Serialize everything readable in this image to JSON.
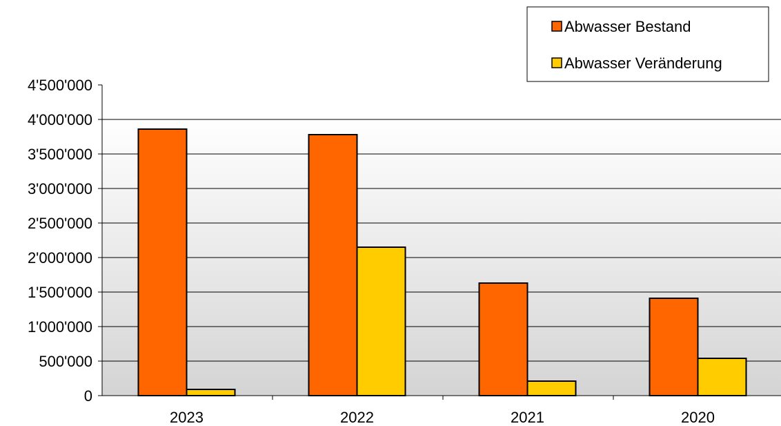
{
  "chart_data": {
    "type": "bar",
    "categories": [
      "2023",
      "2022",
      "2021",
      "2020"
    ],
    "series": [
      {
        "name": "Abwasser Bestand",
        "color": "#FF6600",
        "values": [
          3860000,
          3780000,
          1630000,
          1410000
        ]
      },
      {
        "name": "Abwasser Veränderung",
        "color": "#FFCC00",
        "values": [
          90000,
          2150000,
          210000,
          540000
        ]
      }
    ],
    "ylim": [
      0,
      4500000
    ],
    "yticks": [
      0,
      500000,
      1000000,
      1500000,
      2000000,
      2500000,
      3000000,
      3500000,
      4000000,
      4500000
    ],
    "ytick_labels": [
      "0",
      "500'000",
      "1'000'000",
      "1'500'000",
      "2'000'000",
      "2'500'000",
      "3'000'000",
      "3'500'000",
      "4'000'000",
      "4'500'000"
    ],
    "grid": true,
    "legend_position": "top-right",
    "title": "",
    "xlabel": "",
    "ylabel": ""
  }
}
